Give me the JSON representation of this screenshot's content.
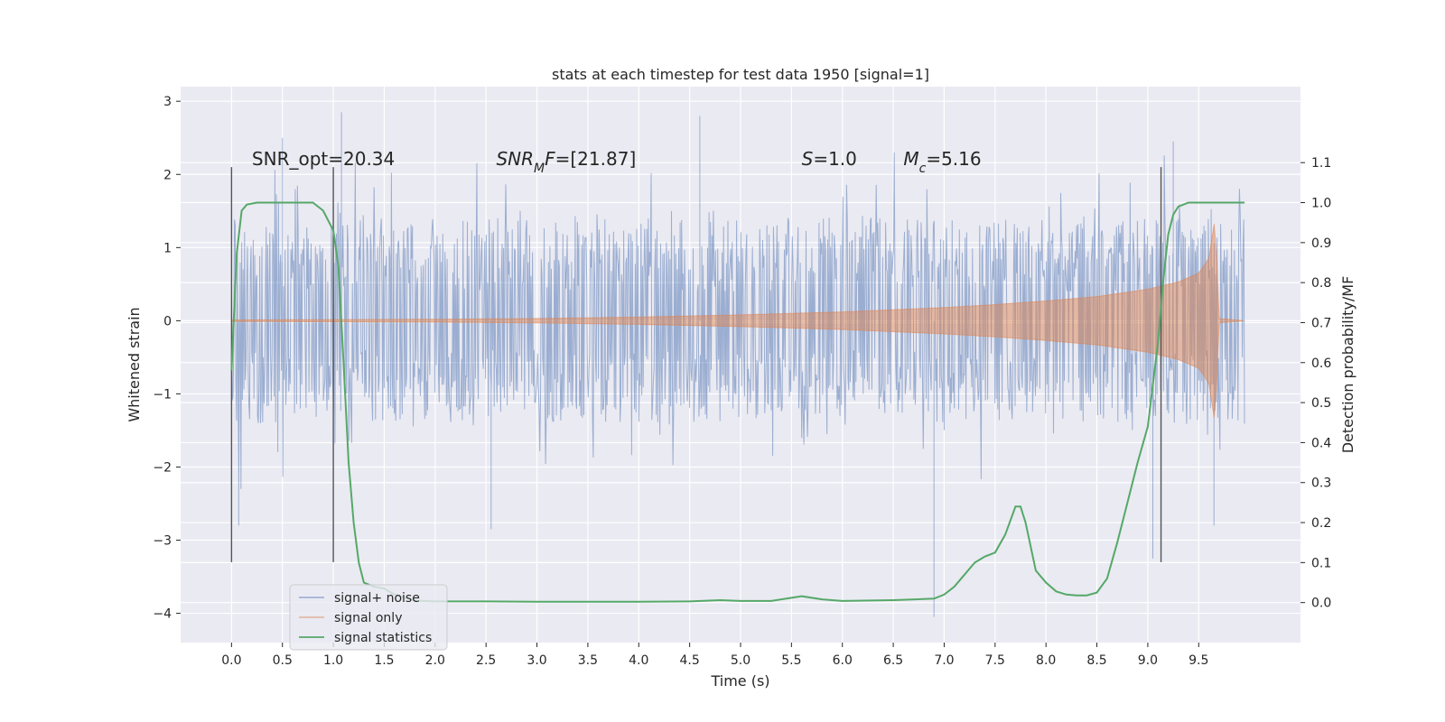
{
  "chart_data": {
    "type": "line",
    "title": "stats at each timestep for test data 1950 [signal=1]",
    "xlabel": "Time (s)",
    "ylabel": "Whitened strain",
    "y2label": "Detection probability/MF",
    "xlim": [
      -0.5,
      10.5
    ],
    "ylim": [
      -4.4,
      3.2
    ],
    "y2lim": [
      -0.1,
      1.29
    ],
    "x_ticks": [
      0.0,
      0.5,
      1.0,
      1.5,
      2.0,
      2.5,
      3.0,
      3.5,
      4.0,
      4.5,
      5.0,
      5.5,
      6.0,
      6.5,
      7.0,
      7.5,
      8.0,
      8.5,
      9.0,
      9.5
    ],
    "x_tick_labels": [
      "0.0",
      "0.5",
      "1.0",
      "1.5",
      "2.0",
      "2.5",
      "3.0",
      "3.5",
      "4.0",
      "4.5",
      "5.0",
      "5.5",
      "6.0",
      "6.5",
      "7.0",
      "7.5",
      "8.0",
      "8.5",
      "9.0",
      "9.5"
    ],
    "y_ticks": [
      -4,
      -3,
      -2,
      -1,
      0,
      1,
      2,
      3
    ],
    "y_tick_labels": [
      "−4",
      "−3",
      "−2",
      "−1",
      "0",
      "1",
      "2",
      "3"
    ],
    "y2_ticks": [
      0.0,
      0.1,
      0.2,
      0.3,
      0.4,
      0.5,
      0.6,
      0.7,
      0.8,
      0.9,
      1.0,
      1.1
    ],
    "y2_tick_labels": [
      "0.0",
      "0.1",
      "0.2",
      "0.3",
      "0.4",
      "0.5",
      "0.6",
      "0.7",
      "0.8",
      "0.9",
      "1.0",
      "1.1"
    ],
    "grid": true,
    "legend_position": "lower-left",
    "series": [
      {
        "name": "signal+ noise",
        "color": "#4c72b0",
        "axis": "left",
        "x_range": [
          0.0,
          9.95
        ],
        "typical_envelope": [
          -1.4,
          1.4
        ],
        "extremes": [
          {
            "x": 0.07,
            "y": -2.8
          },
          {
            "x": 0.5,
            "y": 2.5
          },
          {
            "x": 1.08,
            "y": 2.85
          },
          {
            "x": 2.55,
            "y": -2.85
          },
          {
            "x": 4.6,
            "y": 2.8
          },
          {
            "x": 6.9,
            "y": -4.05
          },
          {
            "x": 9.05,
            "y": -3.25
          },
          {
            "x": 9.65,
            "y": -2.8
          },
          {
            "x": 9.25,
            "y": 2.45
          }
        ]
      },
      {
        "name": "signal only",
        "color": "#dd8452",
        "axis": "left",
        "envelope": {
          "x": [
            0.0,
            1.0,
            2.0,
            3.0,
            4.0,
            5.0,
            6.0,
            7.0,
            7.5,
            8.0,
            8.5,
            9.0,
            9.3,
            9.5,
            9.6,
            9.66,
            9.7,
            9.95
          ],
          "amp": [
            0.01,
            0.015,
            0.02,
            0.03,
            0.05,
            0.08,
            0.12,
            0.18,
            0.22,
            0.27,
            0.33,
            0.43,
            0.53,
            0.65,
            0.85,
            1.4,
            0.03,
            0.0
          ]
        }
      },
      {
        "name": "signal statistics",
        "color": "#55a868",
        "axis": "right",
        "x": [
          0.0,
          0.05,
          0.1,
          0.15,
          0.25,
          0.4,
          0.6,
          0.8,
          0.9,
          1.0,
          1.05,
          1.1,
          1.15,
          1.2,
          1.25,
          1.3,
          1.4,
          1.5,
          1.6,
          1.8,
          2.0,
          2.5,
          3.0,
          3.5,
          4.0,
          4.5,
          4.8,
          5.0,
          5.3,
          5.6,
          5.8,
          6.0,
          6.5,
          6.9,
          7.0,
          7.1,
          7.2,
          7.3,
          7.4,
          7.5,
          7.6,
          7.7,
          7.75,
          7.8,
          7.9,
          8.0,
          8.1,
          8.2,
          8.3,
          8.4,
          8.5,
          8.6,
          8.7,
          8.8,
          8.9,
          9.0,
          9.1,
          9.15,
          9.2,
          9.25,
          9.3,
          9.4,
          9.6,
          9.8,
          9.95
        ],
        "y": [
          0.58,
          0.87,
          0.98,
          0.995,
          1.0,
          1.0,
          1.0,
          1.0,
          0.98,
          0.93,
          0.84,
          0.6,
          0.35,
          0.2,
          0.1,
          0.05,
          0.04,
          0.035,
          0.02,
          0.005,
          0.003,
          0.003,
          0.002,
          0.002,
          0.002,
          0.003,
          0.006,
          0.004,
          0.004,
          0.016,
          0.008,
          0.004,
          0.006,
          0.01,
          0.02,
          0.04,
          0.07,
          0.1,
          0.115,
          0.125,
          0.17,
          0.24,
          0.24,
          0.2,
          0.08,
          0.05,
          0.028,
          0.02,
          0.018,
          0.018,
          0.025,
          0.06,
          0.15,
          0.25,
          0.35,
          0.44,
          0.65,
          0.8,
          0.92,
          0.97,
          0.99,
          1.0,
          1.0,
          1.0,
          1.0
        ]
      }
    ],
    "vertical_lines": [
      {
        "x": 0.0,
        "y_from": -3.3,
        "y_to": 2.1
      },
      {
        "x": 1.0,
        "y_from": -3.3,
        "y_to": 2.1
      },
      {
        "x": 9.13,
        "y_from": -3.3,
        "y_to": 2.1
      }
    ],
    "annotations": [
      {
        "text": "SNR_opt=20.34",
        "x": 0.2,
        "y": 2.2,
        "italic": false
      },
      {
        "text": "SNR_MF=[21.87]",
        "x": 2.6,
        "y": 2.2,
        "italic": "mf"
      },
      {
        "text": "S=1.0",
        "x": 5.6,
        "y": 2.2,
        "italic": "s"
      },
      {
        "text": "M_c=5.16",
        "x": 6.6,
        "y": 2.2,
        "italic": "mc"
      }
    ]
  }
}
